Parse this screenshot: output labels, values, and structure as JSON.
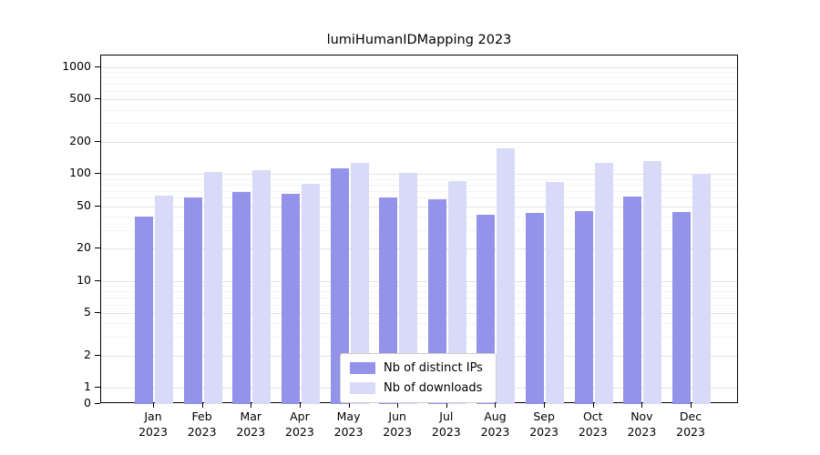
{
  "chart_data": {
    "type": "bar",
    "title": "lumiHumanIDMapping 2023",
    "categories": [
      "Jan 2023",
      "Feb 2023",
      "Mar 2023",
      "Apr 2023",
      "May 2023",
      "Jun 2023",
      "Jul 2023",
      "Aug 2023",
      "Sep 2023",
      "Oct 2023",
      "Nov 2023",
      "Dec 2023"
    ],
    "series": [
      {
        "name": "Nb of distinct IPs",
        "color": "#9493ea",
        "values": [
          40,
          60,
          68,
          65,
          113,
          60,
          58,
          42,
          43,
          45,
          62,
          44
        ]
      },
      {
        "name": "Nb of downloads",
        "color": "#d9d9f8",
        "values": [
          63,
          105,
          108,
          82,
          128,
          103,
          86,
          175,
          84,
          128,
          132,
          100
        ]
      }
    ],
    "yscale": "log",
    "yticks": [
      0,
      1,
      2,
      5,
      10,
      20,
      50,
      100,
      200,
      500,
      1000
    ],
    "ylim": [
      0,
      1300
    ],
    "xlabel": "",
    "ylabel": "",
    "grid": true,
    "legend_position": "lower center"
  }
}
